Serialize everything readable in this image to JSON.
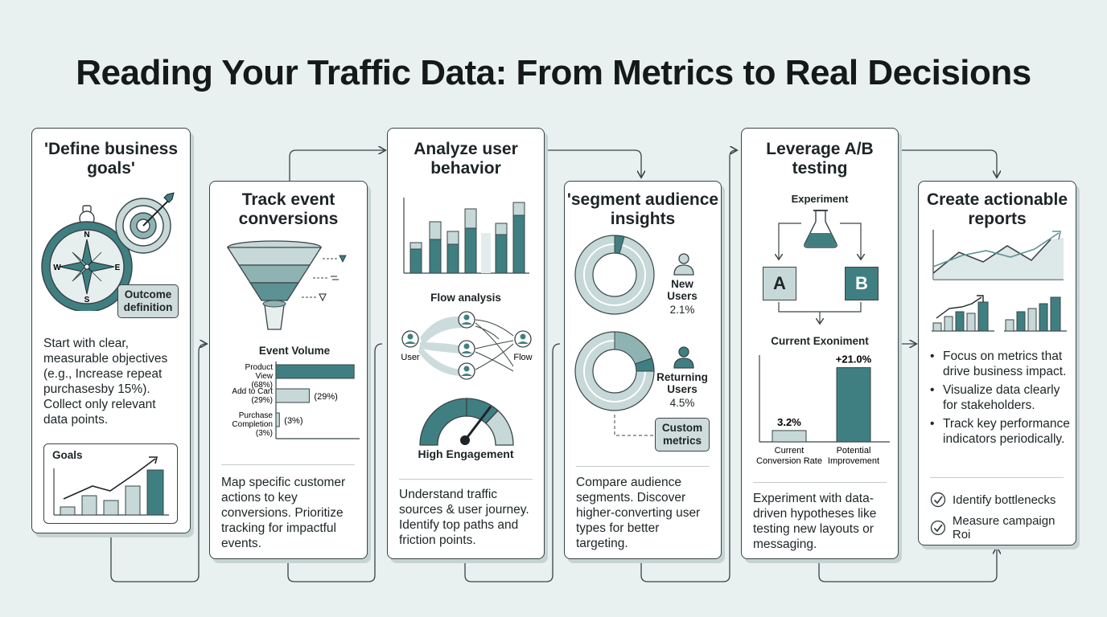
{
  "title": "Reading Your Traffic Data: From Metrics to Real Decisions",
  "colors": {
    "teal_dark": "#3f7f82",
    "teal_mid": "#8fb3b3",
    "teal_light": "#c6d8d8",
    "outline": "#3a4446",
    "background": "#e9f0f0"
  },
  "cards": {
    "goals": {
      "title": "'Define business goals'",
      "badge": "Outcome definition",
      "compass": {
        "n": "N",
        "e": "E",
        "s": "S",
        "w": "W"
      },
      "body": "Start with clear, measurable objectives (e.g., Increase repeat purchasesby 15%). Collect only relevant data points.",
      "mini_chart_label": "Goals"
    },
    "track": {
      "title": "Track event conversions",
      "chart_title": "Event Volume",
      "body": "Map specific customer actions to key conversions. Prioritize tracking for impactful events."
    },
    "analyze": {
      "title": "Analyze user behavior",
      "flow_title": "Flow analysis",
      "flow_user": "User",
      "flow_end": "Flow",
      "gauge_label": "High Engagement",
      "body": "Understand traffic sources & user journey. Identify top paths and friction points."
    },
    "segment": {
      "title": "'segment audience insights",
      "new_label": "New Users",
      "new_value": "2.1%",
      "returning_label": "Returning Users",
      "returning_value": "4.5%",
      "badge": "Custom metrics",
      "body": "Compare audience segments. Discover higher-converting user types for better targeting."
    },
    "ab": {
      "title": "Leverage A/B testing",
      "experiment": "Experiment",
      "a": "A",
      "b": "B",
      "chart_title": "Current Exoniment",
      "body": "Experiment with data-driven hypotheses like testing new layouts or messaging."
    },
    "reports": {
      "title": "Create actionable reports",
      "bullets": [
        "Focus on metrics that drive business impact.",
        "Visualize data clearly for stakeholders.",
        "Track key performance indicators periodically."
      ],
      "checks": [
        "Identify bottlenecks",
        "Measure campaign Roi"
      ]
    }
  },
  "chart_data": [
    {
      "type": "bar",
      "title": "Event Volume",
      "categories": [
        "Product View",
        "Add to Cart",
        "Purchase Completion"
      ],
      "category_labels": [
        "(68%)",
        "(29%)",
        "(3%)"
      ],
      "value_labels": [
        "",
        "(29%)",
        "(3%)"
      ],
      "values": [
        68,
        29,
        3
      ],
      "orientation": "horizontal",
      "xlim": [
        0,
        70
      ]
    },
    {
      "type": "bar",
      "title": "Current Exoniment",
      "categories": [
        "Current Conversion Rate",
        "Potential Improvement"
      ],
      "value_labels": [
        "3.2%",
        "+21.0%"
      ],
      "values": [
        3.2,
        21.0
      ],
      "ylim": [
        0,
        30
      ]
    }
  ]
}
